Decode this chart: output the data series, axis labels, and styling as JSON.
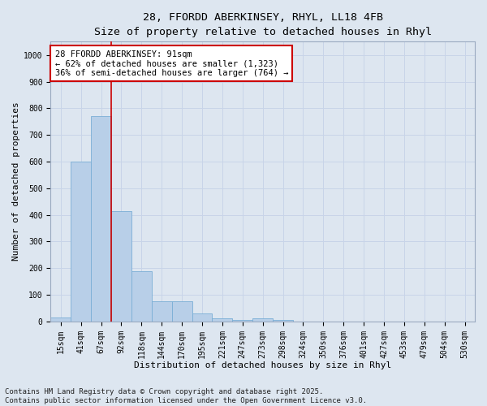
{
  "title_line1": "28, FFORDD ABERKINSEY, RHYL, LL18 4FB",
  "title_line2": "Size of property relative to detached houses in Rhyl",
  "xlabel": "Distribution of detached houses by size in Rhyl",
  "ylabel": "Number of detached properties",
  "categories": [
    "15sqm",
    "41sqm",
    "67sqm",
    "92sqm",
    "118sqm",
    "144sqm",
    "170sqm",
    "195sqm",
    "221sqm",
    "247sqm",
    "273sqm",
    "298sqm",
    "324sqm",
    "350sqm",
    "376sqm",
    "401sqm",
    "427sqm",
    "453sqm",
    "479sqm",
    "504sqm",
    "530sqm"
  ],
  "values": [
    15,
    600,
    770,
    415,
    190,
    75,
    75,
    30,
    12,
    5,
    12,
    5,
    0,
    0,
    0,
    0,
    0,
    0,
    0,
    0,
    0
  ],
  "bar_color": "#b8cfe8",
  "bar_edge_color": "#7aaed6",
  "vline_color": "#cc0000",
  "vline_x": 2.5,
  "annotation_text": "28 FFORDD ABERKINSEY: 91sqm\n← 62% of detached houses are smaller (1,323)\n36% of semi-detached houses are larger (764) →",
  "ylim": [
    0,
    1050
  ],
  "yticks": [
    0,
    100,
    200,
    300,
    400,
    500,
    600,
    700,
    800,
    900,
    1000
  ],
  "grid_color": "#c8d4e8",
  "background_color": "#dde6f0",
  "plot_bg_color": "#dde6f0",
  "footer_line1": "Contains HM Land Registry data © Crown copyright and database right 2025.",
  "footer_line2": "Contains public sector information licensed under the Open Government Licence v3.0.",
  "title_fontsize": 9.5,
  "subtitle_fontsize": 8.5,
  "axis_label_fontsize": 8,
  "tick_fontsize": 7,
  "annotation_fontsize": 7.5,
  "footer_fontsize": 6.5
}
